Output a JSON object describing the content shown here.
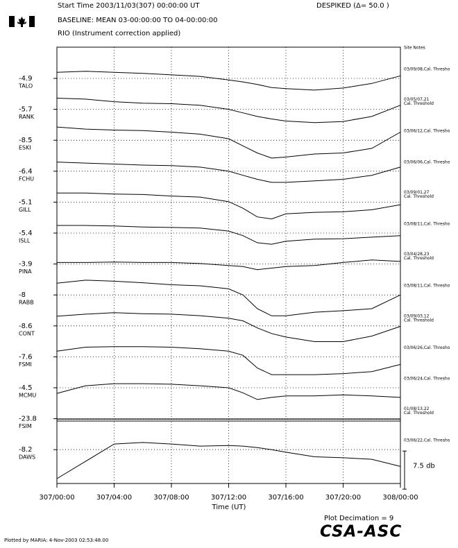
{
  "header": {
    "start_time": "Start Time 2003/11/03(307) 00:00:00 UT",
    "despiked": "DESPIKED (Δ= 50.0  )",
    "baseline": "BASELINE: MEAN 03-00:00:00 TO 04-00:00:00",
    "correction": "RIO (Instrument correction applied)"
  },
  "footer": {
    "decimation": "Plot Decimation = 9",
    "logo": "CSA-ASC",
    "plotted_by": "Plotted by MARIA:  4-Nov-2003 02:53:48.00"
  },
  "chart_data": {
    "type": "line",
    "notes_header": "Site Notes",
    "xlabel": "Time (UT)",
    "color": "#000000",
    "x": [
      0,
      2,
      4,
      6,
      8,
      10,
      12,
      13,
      14,
      15,
      16,
      18,
      20,
      22,
      24
    ],
    "xlim": [
      0,
      24
    ],
    "xticks": [
      {
        "value": 0,
        "label": "307/00:00"
      },
      {
        "value": 4,
        "label": "307/04:00"
      },
      {
        "value": 8,
        "label": "307/08:00"
      },
      {
        "value": 12,
        "label": "307/12:00"
      },
      {
        "value": 16,
        "label": "307/16:00"
      },
      {
        "value": 20,
        "label": "307/20:00"
      },
      {
        "value": 24,
        "label": "308/00:00"
      }
    ],
    "grid": true,
    "scale_bar": {
      "value": 7.5,
      "label": "7.5 db"
    },
    "series": [
      {
        "name": "TALO",
        "baseline": -4.9,
        "note": [
          "03/09/08,Cal. Thresho"
        ],
        "values": [
          -3.7,
          -3.5,
          -3.7,
          -3.9,
          -4.2,
          -4.5,
          -5.2,
          -5.6,
          -6.1,
          -6.7,
          -6.9,
          -7.2,
          -6.8,
          -5.9,
          -4.4
        ]
      },
      {
        "name": "RANK",
        "baseline": -5.7,
        "note": [
          "03/05/07,21",
          "Cal. Threshold"
        ],
        "values": [
          -3.5,
          -3.7,
          -4.2,
          -4.5,
          -4.6,
          -4.9,
          -5.7,
          -6.4,
          -7.1,
          -7.6,
          -8.0,
          -8.3,
          -8.1,
          -7.1,
          -4.9
        ]
      },
      {
        "name": "ESKI",
        "baseline": -8.5,
        "note": [
          "03/06/12,Cal. Thresho"
        ],
        "values": [
          -5.9,
          -6.3,
          -6.5,
          -6.6,
          -6.9,
          -7.3,
          -8.2,
          -9.6,
          -11.0,
          -12.0,
          -11.8,
          -11.2,
          -11.0,
          -10.1,
          -6.9
        ]
      },
      {
        "name": "FCHU",
        "baseline": -6.4,
        "note": [
          "03/06/06,Cal. Thresho"
        ],
        "values": [
          -4.6,
          -4.8,
          -5.0,
          -5.2,
          -5.3,
          -5.6,
          -6.4,
          -7.2,
          -8.0,
          -8.6,
          -8.6,
          -8.3,
          -8.0,
          -7.2,
          -5.6
        ]
      },
      {
        "name": "GILL",
        "baseline": -5.1,
        "note": [
          "03/09/01,27",
          "Cal. Threshold"
        ],
        "values": [
          -3.3,
          -3.3,
          -3.5,
          -3.6,
          -3.9,
          -4.1,
          -5.0,
          -6.3,
          -8.0,
          -8.4,
          -7.4,
          -7.1,
          -7.0,
          -6.6,
          -5.6
        ]
      },
      {
        "name": "ISLL",
        "baseline": -5.4,
        "note": [
          "03/08/11,Cal. Thresho"
        ],
        "values": [
          -3.9,
          -3.9,
          -4.0,
          -4.2,
          -4.3,
          -4.4,
          -5.0,
          -5.9,
          -7.3,
          -7.6,
          -7.0,
          -6.6,
          -6.5,
          -6.2,
          -5.9
        ]
      },
      {
        "name": "PINA",
        "baseline": -3.9,
        "note": [
          "03/04/28,23",
          "Cal. Threshold"
        ],
        "values": [
          -3.6,
          -3.6,
          -3.5,
          -3.6,
          -3.6,
          -3.8,
          -4.2,
          -4.4,
          -5.0,
          -4.7,
          -4.4,
          -4.2,
          -3.6,
          -3.1,
          -3.4
        ]
      },
      {
        "name": "RABB",
        "baseline": -8.0,
        "note": [
          "03/08/11,Cal. Thresho"
        ],
        "values": [
          -5.7,
          -5.1,
          -5.3,
          -5.6,
          -6.0,
          -6.2,
          -6.8,
          -8.0,
          -10.7,
          -12.1,
          -12.1,
          -11.4,
          -11.1,
          -10.7,
          -8.0
        ]
      },
      {
        "name": "CONT",
        "baseline": -8.6,
        "note": [
          "03/09/03,12",
          "Cal. Threshold"
        ],
        "values": [
          -6.7,
          -6.3,
          -6.0,
          -6.2,
          -6.3,
          -6.6,
          -7.1,
          -7.6,
          -9.0,
          -10.1,
          -10.8,
          -11.7,
          -11.7,
          -10.6,
          -8.7
        ]
      },
      {
        "name": "FSMI",
        "baseline": -7.6,
        "note": [
          "03/06/26,Cal. Thresho"
        ],
        "values": [
          -6.5,
          -5.7,
          -5.6,
          -5.6,
          -5.7,
          -6.0,
          -6.5,
          -7.3,
          -9.8,
          -11.1,
          -11.1,
          -11.1,
          -10.9,
          -10.5,
          -9.1
        ]
      },
      {
        "name": "MCMU",
        "baseline": -4.5,
        "note": [
          "03/06/24,Cal. Thresho"
        ],
        "values": [
          -5.6,
          -4.1,
          -3.7,
          -3.7,
          -3.8,
          -4.1,
          -4.5,
          -5.5,
          -6.8,
          -6.4,
          -6.1,
          -6.1,
          -5.9,
          -6.1,
          -6.4
        ]
      },
      {
        "name": "FSIM",
        "baseline": -23.8,
        "note": [
          "01/08/13,22",
          "Cal. Threshold"
        ],
        "values": [
          -23.9,
          -23.9,
          -23.9,
          -23.9,
          -23.9,
          -23.9,
          -23.9,
          -23.9,
          -23.9,
          -23.9,
          -23.9,
          -23.9,
          -23.9,
          -23.9,
          -23.9
        ]
      },
      {
        "name": "DAWS",
        "baseline": -8.2,
        "note": [
          "03/06/22,Cal. Thresho"
        ],
        "values": [
          -13.9,
          -10.5,
          -7.1,
          -6.8,
          -7.1,
          -7.5,
          -7.4,
          -7.5,
          -7.8,
          -8.2,
          -8.7,
          -9.6,
          -9.8,
          -10.1,
          -11.5
        ]
      }
    ]
  }
}
